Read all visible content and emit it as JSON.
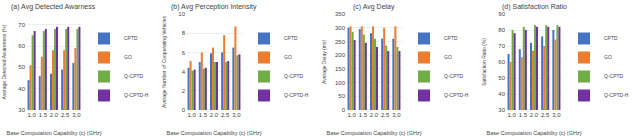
{
  "chart_data": [
    {
      "type": "bar",
      "title": "(a) Avg Detected Awarness",
      "xlabel": "Base Computation Capability (c) (GHz)",
      "ylabel": "Average Detected Awareness (%)",
      "categories": [
        "1.0",
        "1.5",
        "2.0",
        "2.5",
        "3.0"
      ],
      "series": [
        {
          "name": "CPTD",
          "color": "#4472c4",
          "values": [
            44,
            46,
            47,
            49,
            52
          ]
        },
        {
          "name": "GO",
          "color": "#ed7d31",
          "values": [
            51,
            55,
            58,
            58,
            59
          ]
        },
        {
          "name": "Q-CPTD",
          "color": "#70ad47",
          "values": [
            65,
            67,
            68,
            68,
            68
          ]
        },
        {
          "name": "Q-CPTD-H",
          "color": "#7030a0",
          "values": [
            67,
            68,
            69,
            69,
            69
          ]
        }
      ],
      "ylim": [
        30,
        75
      ],
      "yticks": [
        30,
        40,
        50,
        60,
        70
      ],
      "grid": true,
      "legend": "lower right"
    },
    {
      "type": "bar",
      "title": "(b) Avg Perception Intensity",
      "xlabel": "Base Computation Capability (c) (GHz)",
      "ylabel": "Average Number of Cooperating Vehicles",
      "categories": [
        "1.0",
        "1.5",
        "2.0",
        "2.5",
        "3.0"
      ],
      "series": [
        {
          "name": "CPTD",
          "color": "#4472c4",
          "values": [
            4.4,
            5.0,
            5.9,
            6.0,
            6.5
          ]
        },
        {
          "name": "GO",
          "color": "#ed7d31",
          "values": [
            5.1,
            6.0,
            6.5,
            7.8,
            8.7
          ]
        },
        {
          "name": "Q-CPTD",
          "color": "#70ad47",
          "values": [
            4.1,
            4.3,
            5.0,
            5.0,
            5.7
          ]
        },
        {
          "name": "Q-CPTD-H",
          "color": "#7030a0",
          "values": [
            4.2,
            4.4,
            5.0,
            5.1,
            5.8
          ]
        }
      ],
      "ylim": [
        0,
        10
      ],
      "yticks": [
        0,
        2,
        4,
        6,
        8,
        10
      ],
      "grid": true,
      "legend": "lower right"
    },
    {
      "type": "bar",
      "title": "(c) Avg Delay",
      "xlabel": "Base Computation Capability (c) (GHz)",
      "ylabel": "Average Delay (ms)",
      "categories": [
        "1.0",
        "1.5",
        "2.0",
        "2.5",
        "3.0"
      ],
      "series": [
        {
          "name": "CPTD",
          "color": "#4472c4",
          "values": [
            300,
            295,
            280,
            260,
            260
          ]
        },
        {
          "name": "GO",
          "color": "#ed7d31",
          "values": [
            305,
            305,
            305,
            300,
            305
          ]
        },
        {
          "name": "Q-CPTD",
          "color": "#70ad47",
          "values": [
            285,
            275,
            260,
            235,
            230
          ]
        },
        {
          "name": "Q-CPTD-H",
          "color": "#7030a0",
          "values": [
            255,
            245,
            230,
            215,
            215
          ]
        }
      ],
      "ylim": [
        0,
        350
      ],
      "yticks": [
        0,
        50,
        100,
        150,
        200,
        250,
        300,
        350
      ],
      "grid": true,
      "legend": "lower right"
    },
    {
      "type": "bar",
      "title": "(d) Satisfaction Ratio",
      "xlabel": "Base Computation Capability (c) (GHz)",
      "ylabel": "Satisfaction Ratio (%)",
      "categories": [
        "1.0",
        "1.5",
        "2.0",
        "2.5",
        "3.0"
      ],
      "series": [
        {
          "name": "CPTD",
          "color": "#4472c4",
          "values": [
            65,
            68,
            72,
            76,
            80
          ]
        },
        {
          "name": "GO",
          "color": "#ed7d31",
          "values": [
            60,
            63,
            67,
            70,
            74
          ]
        },
        {
          "name": "Q-CPTD",
          "color": "#70ad47",
          "values": [
            80,
            82,
            83,
            83,
            83
          ]
        },
        {
          "name": "Q-CPTD-H",
          "color": "#7030a0",
          "values": [
            78,
            80,
            82,
            82,
            82
          ]
        }
      ],
      "ylim": [
        30,
        90
      ],
      "yticks": [
        30,
        40,
        50,
        60,
        70,
        80,
        90
      ],
      "grid": true,
      "legend": "lower right"
    }
  ]
}
